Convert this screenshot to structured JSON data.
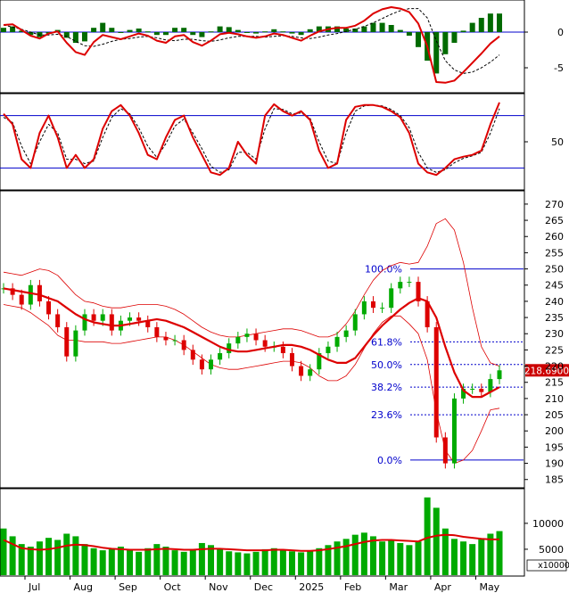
{
  "chart_data": {
    "type": "candlestick",
    "x_months": [
      "Jul",
      "Aug",
      "Sep",
      "Oct",
      "Nov",
      "Dec",
      "2025",
      "Feb",
      "Mar",
      "Apr",
      "May"
    ],
    "price": {
      "y_ticks": [
        270,
        265,
        260,
        255,
        250,
        245,
        240,
        235,
        230,
        225,
        220,
        215,
        210,
        205,
        200,
        195,
        190,
        185
      ],
      "current_price_label": "218.6900",
      "fibonacci_levels": [
        {
          "label": "100.0%",
          "value": 250.0
        },
        {
          "label": "61.8%",
          "value": 227.5
        },
        {
          "label": "50.0%",
          "value": 220.5
        },
        {
          "label": "38.2%",
          "value": 213.5
        },
        {
          "label": "23.6%",
          "value": 205.0
        },
        {
          "label": "0.0%",
          "value": 191.0
        }
      ],
      "ylim": [
        183,
        273
      ],
      "series": [
        {
          "role": "moving-average",
          "color": "#dd0000",
          "values": [
            244,
            243.5,
            243,
            242.5,
            242,
            241,
            240,
            238,
            236,
            234.5,
            233.5,
            233,
            232.5,
            232.5,
            233,
            233.5,
            234,
            234.5,
            234,
            233,
            232,
            230.5,
            229,
            227.5,
            226,
            225,
            224.5,
            224.5,
            225,
            225.5,
            226,
            226.5,
            226.5,
            226,
            225,
            223.5,
            222,
            221,
            221,
            222.5,
            226,
            229.5,
            232.5,
            235,
            237.5,
            239.5,
            241,
            240,
            235,
            226,
            218,
            212.5,
            210.5,
            210.5,
            212,
            213.5
          ]
        },
        {
          "role": "upper-band",
          "color": "#dd0000",
          "values": [
            249,
            248.5,
            248,
            249,
            250,
            249.5,
            248,
            245,
            242,
            240,
            239.5,
            238.5,
            238,
            238,
            238.5,
            239,
            239,
            239,
            238.5,
            237.5,
            236,
            234,
            232,
            230.5,
            229.5,
            229,
            229,
            229.5,
            230,
            230.5,
            231,
            231.5,
            231.5,
            231,
            230,
            229,
            229,
            230,
            233,
            237,
            242,
            246.5,
            249.5,
            251,
            252,
            251.5,
            252,
            257,
            264,
            265.5,
            262,
            252,
            238,
            226,
            221,
            220
          ]
        },
        {
          "role": "lower-band",
          "color": "#dd0000",
          "values": [
            239,
            238.5,
            238,
            236.5,
            234.5,
            232.5,
            229.5,
            228,
            228,
            227.5,
            227.5,
            227.5,
            227,
            227,
            227.5,
            228,
            228.5,
            229,
            229,
            228,
            226.5,
            224.5,
            222.5,
            220.5,
            219.5,
            219,
            219,
            219.5,
            220,
            220.5,
            221,
            221.5,
            221.5,
            221,
            219.5,
            217,
            215.5,
            215.5,
            217,
            220.5,
            225.5,
            230,
            233.5,
            235.5,
            235.5,
            233,
            230,
            222,
            206,
            194,
            190,
            191,
            194,
            200,
            206.5,
            207
          ]
        },
        {
          "role": "close",
          "color": "#00aa00",
          "values": [
            244,
            242,
            239,
            245,
            240,
            236,
            232,
            223,
            231,
            236,
            234,
            236,
            231,
            234,
            235,
            234,
            232,
            229,
            228,
            228,
            225,
            222,
            219,
            222,
            224,
            227,
            229,
            230,
            228,
            226,
            226,
            224,
            220,
            217,
            219,
            224,
            226,
            229,
            231,
            236,
            240,
            238,
            238,
            244,
            246,
            246,
            240,
            232,
            198,
            190,
            210,
            213,
            213,
            212,
            216,
            218.7
          ]
        }
      ]
    },
    "macd": {
      "y_ticks": [
        0,
        -5
      ],
      "ylim": [
        -8,
        4
      ],
      "macd_line": [
        1.0,
        1.1,
        0.3,
        -0.5,
        -0.9,
        -0.2,
        0.1,
        -1.5,
        -2.8,
        -3.2,
        -1.4,
        -0.4,
        -0.7,
        -1.0,
        -0.6,
        -0.2,
        -0.5,
        -1.2,
        -1.5,
        -0.6,
        -0.4,
        -1.4,
        -1.9,
        -1.2,
        -0.3,
        -0.1,
        -0.3,
        -0.6,
        -0.8,
        -0.6,
        -0.2,
        -0.4,
        -0.8,
        -1.2,
        -0.5,
        0.1,
        0.4,
        0.6,
        0.6,
        0.9,
        1.6,
        2.6,
        3.2,
        3.5,
        3.3,
        2.8,
        1.2,
        -2.0,
        -7.0,
        -7.1,
        -6.8,
        -5.6,
        -4.3,
        -3.0,
        -1.6,
        -0.6
      ],
      "signal_line": [
        1.0,
        0.7,
        0.4,
        0.0,
        -0.4,
        -0.4,
        -0.3,
        -0.6,
        -1.3,
        -1.9,
        -2.0,
        -1.7,
        -1.3,
        -1.0,
        -0.9,
        -0.7,
        -0.6,
        -0.8,
        -1.1,
        -1.2,
        -1.0,
        -1.0,
        -1.2,
        -1.3,
        -1.1,
        -0.8,
        -0.6,
        -0.6,
        -0.6,
        -0.7,
        -0.6,
        -0.5,
        -0.6,
        -0.8,
        -0.9,
        -0.7,
        -0.4,
        -0.2,
        0.1,
        0.4,
        0.8,
        1.3,
        1.9,
        2.5,
        3.0,
        3.3,
        3.3,
        2.0,
        -1.2,
        -4.0,
        -5.3,
        -5.8,
        -5.6,
        -5.0,
        -4.2,
        -3.2
      ],
      "histogram": [
        0.6,
        0.8,
        0.2,
        -0.4,
        -0.7,
        -0.2,
        0.3,
        -0.8,
        -1.5,
        -1.3,
        0.6,
        1.3,
        0.6,
        0.0,
        0.3,
        0.5,
        0.1,
        -0.4,
        -0.4,
        0.6,
        0.6,
        -0.4,
        -0.7,
        0.1,
        0.8,
        0.7,
        0.3,
        0.0,
        -0.2,
        0.1,
        0.4,
        0.1,
        -0.2,
        -0.4,
        0.4,
        0.8,
        0.8,
        0.8,
        0.5,
        0.5,
        0.8,
        1.3,
        1.3,
        1.0,
        0.3,
        -0.5,
        -2.1,
        -4.0,
        -5.8,
        -3.1,
        -1.5,
        0.2,
        1.3,
        2.0,
        2.6,
        2.6
      ]
    },
    "oscillator": {
      "y_ticks": [
        50
      ],
      "ylim": [
        0,
        100
      ],
      "reference_lines": [
        80,
        20
      ],
      "k_line": [
        82,
        70,
        30,
        20,
        60,
        80,
        55,
        20,
        35,
        20,
        30,
        65,
        85,
        92,
        80,
        60,
        35,
        30,
        55,
        75,
        80,
        55,
        35,
        15,
        12,
        20,
        50,
        35,
        25,
        80,
        93,
        85,
        80,
        85,
        75,
        40,
        20,
        25,
        75,
        90,
        92,
        92,
        90,
        85,
        78,
        60,
        25,
        15,
        12,
        20,
        30,
        33,
        35,
        40,
        70,
        95
      ],
      "d_line": [
        78,
        72,
        45,
        25,
        50,
        70,
        60,
        30,
        30,
        25,
        28,
        55,
        78,
        88,
        82,
        66,
        45,
        32,
        48,
        68,
        76,
        60,
        42,
        22,
        15,
        18,
        38,
        38,
        30,
        65,
        88,
        87,
        82,
        83,
        77,
        50,
        28,
        25,
        60,
        85,
        91,
        92,
        91,
        87,
        80,
        66,
        38,
        20,
        15,
        18,
        26,
        31,
        34,
        38,
        60,
        88
      ]
    },
    "volume": {
      "y_ticks": [
        10000,
        5000
      ],
      "unit_label": "x10000",
      "ylim": [
        0,
        16000
      ],
      "values": [
        9000,
        7500,
        6000,
        5500,
        6500,
        7200,
        6800,
        8000,
        7500,
        6000,
        5200,
        4800,
        5000,
        5500,
        4800,
        4500,
        5200,
        6000,
        5500,
        4800,
        4500,
        5000,
        6200,
        5800,
        5000,
        4600,
        4400,
        4200,
        4500,
        5000,
        5200,
        4800,
        4600,
        4400,
        4600,
        5200,
        5800,
        6500,
        7000,
        7800,
        8200,
        7500,
        6500,
        6800,
        6200,
        5800,
        6500,
        15000,
        13000,
        9000,
        7000,
        6500,
        6000,
        7000,
        8000,
        8500
      ],
      "moving_average": [
        6800,
        6000,
        5200,
        5000,
        4900,
        5000,
        5300,
        5700,
        5900,
        5800,
        5600,
        5300,
        5100,
        5000,
        4900,
        4900,
        4900,
        5000,
        5100,
        5000,
        4900,
        4900,
        5000,
        5100,
        5100,
        5000,
        4900,
        4800,
        4800,
        4800,
        4900,
        4900,
        4800,
        4700,
        4700,
        4800,
        5000,
        5300,
        5600,
        6000,
        6400,
        6700,
        6800,
        6800,
        6700,
        6600,
        6500,
        7200,
        7600,
        7800,
        7700,
        7400,
        7200,
        7000,
        6900,
        6900
      ]
    }
  }
}
